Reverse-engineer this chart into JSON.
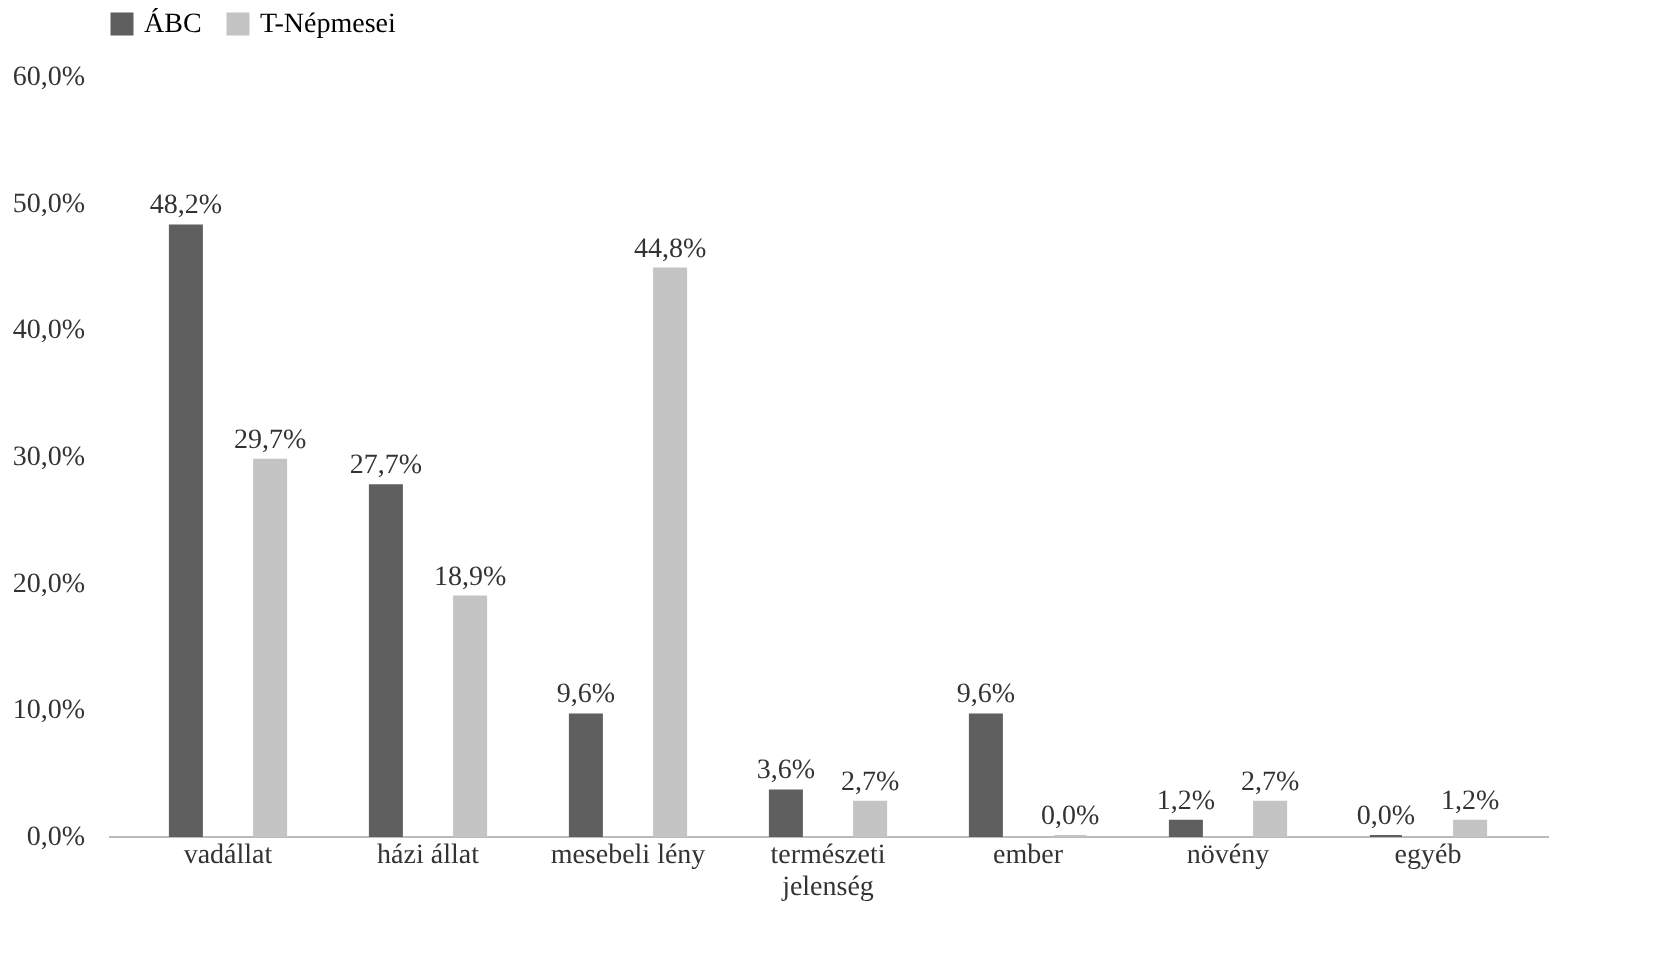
{
  "chart_data": {
    "type": "bar",
    "categories": [
      "vadállat",
      "házi állat",
      "mesebeli lény",
      "természeti jelenség",
      "ember",
      "növény",
      "egyéb"
    ],
    "series": [
      {
        "name": "ÁBC",
        "color": "#5f5f5f",
        "values": [
          48.2,
          27.7,
          9.6,
          3.6,
          9.6,
          1.2,
          0.0
        ],
        "value_labels": [
          "48,2%",
          "27,7%",
          "9,6%",
          "3,6%",
          "9,6%",
          "1,2%",
          "0,0%"
        ]
      },
      {
        "name": "T-Népmesei",
        "color": "#c4c4c4",
        "values": [
          29.7,
          18.9,
          44.8,
          2.7,
          0.0,
          2.7,
          1.2
        ],
        "value_labels": [
          "29,7%",
          "18,9%",
          "44,8%",
          "2,7%",
          "0,0%",
          "2,7%",
          "1,2%"
        ]
      }
    ],
    "ylim": [
      0,
      60
    ],
    "yticks": [
      {
        "value": 0,
        "label": "0,0%"
      },
      {
        "value": 10,
        "label": "10,0%"
      },
      {
        "value": 20,
        "label": "20,0%"
      },
      {
        "value": 30,
        "label": "30,0%"
      },
      {
        "value": 40,
        "label": "40,0%"
      },
      {
        "value": 50,
        "label": "50,0%"
      },
      {
        "value": 60,
        "label": "60,0%"
      }
    ],
    "grid": false,
    "legend": "top"
  }
}
